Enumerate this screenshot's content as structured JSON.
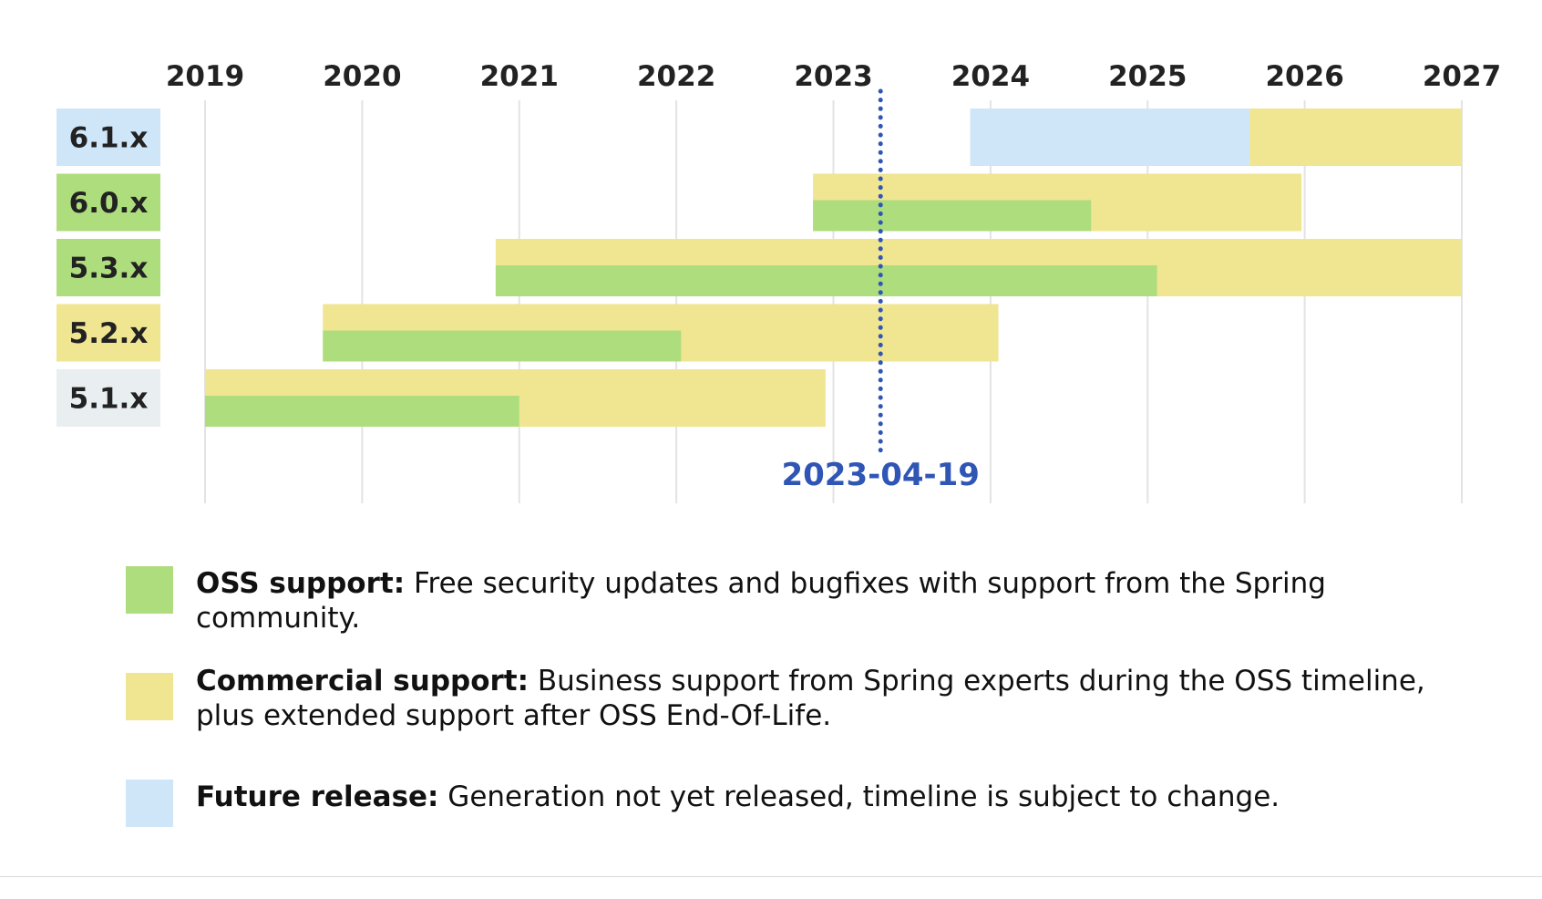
{
  "chart_data": {
    "type": "gantt",
    "title": "",
    "axis": {
      "min": 2019,
      "max": 2027,
      "ticks": [
        "2019",
        "2020",
        "2021",
        "2022",
        "2023",
        "2024",
        "2025",
        "2026",
        "2027"
      ]
    },
    "today": {
      "value": 2023.3,
      "label": "2023-04-19"
    },
    "colors": {
      "oss": "#aedd7e",
      "commercial": "#f0e591",
      "future": "#cfe5f8",
      "label_unsupported": "#e9eef0",
      "today": "#2f55b5",
      "grid": "#e3e3e3"
    },
    "rows": [
      {
        "label": "6.1.x",
        "label_color": "#cfe5f8",
        "commercial": [
          2025.65,
          2027.0
        ],
        "oss": null,
        "future": [
          2023.87,
          2025.65
        ]
      },
      {
        "label": "6.0.x",
        "label_color": "#aedd7e",
        "commercial": [
          2022.87,
          2025.98
        ],
        "oss": [
          2022.87,
          2024.64
        ],
        "future": null
      },
      {
        "label": "5.3.x",
        "label_color": "#aedd7e",
        "commercial": [
          2020.85,
          2027.0
        ],
        "oss": [
          2020.85,
          2025.06
        ],
        "future": null
      },
      {
        "label": "5.2.x",
        "label_color": "#f0e591",
        "commercial": [
          2019.75,
          2024.05
        ],
        "oss": [
          2019.75,
          2022.03
        ],
        "future": null
      },
      {
        "label": "5.1.x",
        "label_color": "#e9eef0",
        "commercial": [
          2019.0,
          2022.95
        ],
        "oss": [
          2019.0,
          2021.0
        ],
        "future": null
      }
    ]
  },
  "legend": [
    {
      "key": "oss",
      "color": "#aedd7e",
      "title": "OSS support:",
      "text": " Free security updates and bugfixes with support from the Spring community."
    },
    {
      "key": "commercial",
      "color": "#f0e591",
      "title": "Commercial support:",
      "text": " Business support from Spring experts during the OSS timeline, plus extended support after OSS End-Of-Life."
    },
    {
      "key": "future",
      "color": "#cfe5f8",
      "title": "Future release:",
      "text": " Generation not yet released, timeline is subject to change."
    }
  ]
}
